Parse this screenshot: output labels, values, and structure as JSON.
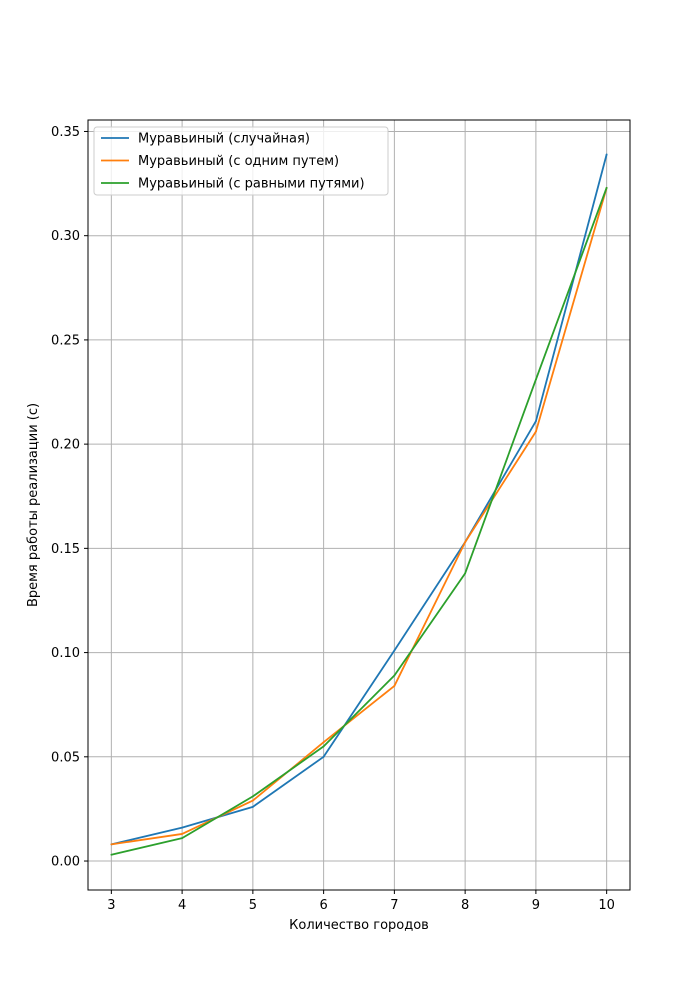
{
  "chart_data": {
    "type": "line",
    "title": "",
    "xlabel": "Количество городов",
    "ylabel": "Время работы реализации (с)",
    "x": [
      3,
      4,
      5,
      6,
      7,
      8,
      9,
      10
    ],
    "xticks": [
      "3",
      "4",
      "5",
      "6",
      "7",
      "8",
      "9",
      "10"
    ],
    "yticks": [
      "0.00",
      "0.05",
      "0.10",
      "0.15",
      "0.20",
      "0.25",
      "0.30",
      "0.35"
    ],
    "ytick_values": [
      0,
      0.05,
      0.1,
      0.15,
      0.2,
      0.25,
      0.3,
      0.35
    ],
    "xlim": [
      2.67,
      10.33
    ],
    "ylim": [
      -0.0139,
      0.3555
    ],
    "grid": true,
    "legend_position": "top-left",
    "series": [
      {
        "name": "Муравьиный (случайная)",
        "color": "#1f77b4",
        "values": [
          0.008,
          0.016,
          0.026,
          0.05,
          0.101,
          0.153,
          0.211,
          0.339
        ]
      },
      {
        "name": "Муравьиный (с одним путем)",
        "color": "#ff7f0e",
        "values": [
          0.008,
          0.013,
          0.029,
          0.057,
          0.084,
          0.153,
          0.206,
          0.323
        ]
      },
      {
        "name": "Муравьиный (с равными путями)",
        "color": "#2ca02c",
        "values": [
          0.003,
          0.011,
          0.031,
          0.055,
          0.089,
          0.138,
          0.231,
          0.323
        ]
      }
    ]
  }
}
